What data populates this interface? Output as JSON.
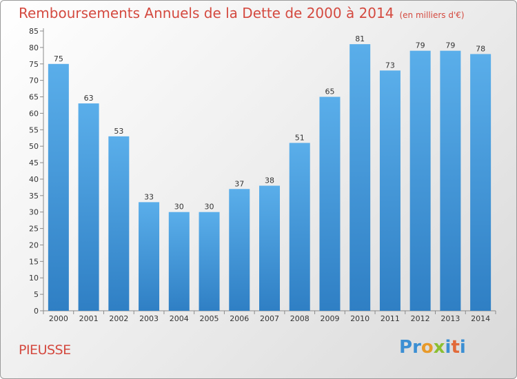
{
  "header": {
    "title": "Remboursements Annuels de la Dette de 2000 à 2014",
    "unit": "(en milliers d'€)"
  },
  "footer": {
    "commune": "PIEUSSE",
    "logo_letters": [
      {
        "ch": "P",
        "color": "#3c8fd3"
      },
      {
        "ch": "r",
        "color": "#3c8fd3"
      },
      {
        "ch": "o",
        "color": "#e89a2a"
      },
      {
        "ch": "x",
        "color": "#8bbf32"
      },
      {
        "ch": "i",
        "color": "#3c8fd3"
      },
      {
        "ch": "t",
        "color": "#e26a3a"
      },
      {
        "ch": "i",
        "color": "#3c8fd3"
      }
    ]
  },
  "colors": {
    "bar_light": "#5aaeea",
    "bar_dark": "#2f7fc4",
    "title": "#d4493f"
  },
  "chart_data": {
    "type": "bar",
    "title": "Remboursements Annuels de la Dette de 2000 à 2014",
    "ylabel": "",
    "xlabel": "",
    "categories": [
      "2000",
      "2001",
      "2002",
      "2003",
      "2004",
      "2005",
      "2006",
      "2007",
      "2008",
      "2009",
      "2010",
      "2011",
      "2012",
      "2013",
      "2014"
    ],
    "values": [
      75,
      63,
      53,
      33,
      30,
      30,
      37,
      38,
      51,
      65,
      81,
      73,
      79,
      79,
      78
    ],
    "ylim": [
      0,
      85
    ],
    "yticks": [
      0,
      5,
      10,
      15,
      20,
      25,
      30,
      35,
      40,
      45,
      50,
      55,
      60,
      65,
      70,
      75,
      80,
      85
    ],
    "grid": false,
    "data_labels": true
  }
}
